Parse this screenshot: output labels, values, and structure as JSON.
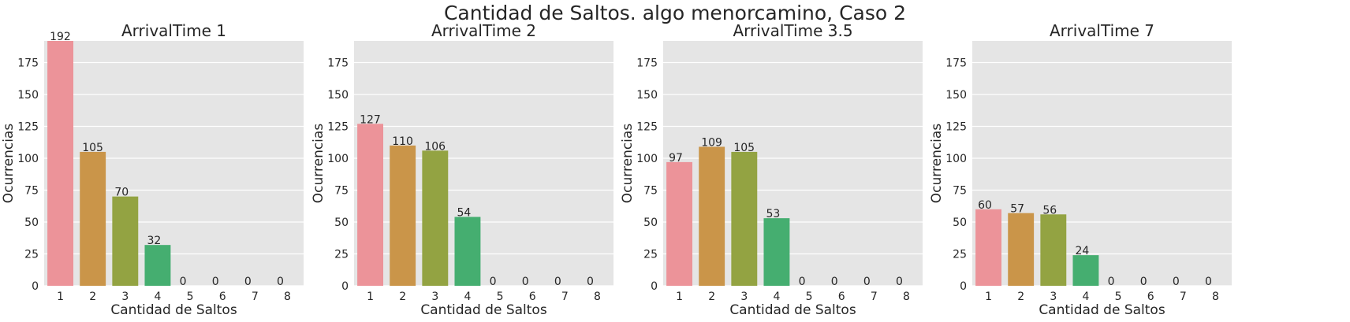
{
  "figure": {
    "suptitle": "Cantidad de Saltos. algo menorcamino, Caso 2"
  },
  "colors": {
    "panel_bg": "#e5e5e5",
    "grid": "#ffffff",
    "text": "#262626",
    "bars": [
      "#ec9399",
      "#ca9549",
      "#93a342",
      "#45ae70",
      "#47aeaa",
      "#4aa8cd",
      "#a8a0e7",
      "#e68ec6"
    ]
  },
  "chart_data": [
    {
      "type": "bar",
      "title": "ArrivalTime 1",
      "xlabel": "Cantidad de Saltos",
      "ylabel": "Ocurrencias",
      "categories": [
        "1",
        "2",
        "3",
        "4",
        "5",
        "6",
        "7",
        "8"
      ],
      "values": [
        192,
        105,
        70,
        32,
        0,
        0,
        0,
        0
      ],
      "ylim": [
        0,
        192
      ],
      "yticks": [
        0,
        25,
        50,
        75,
        100,
        125,
        150,
        175
      ],
      "grid": true
    },
    {
      "type": "bar",
      "title": "ArrivalTime 2",
      "xlabel": "Cantidad de Saltos",
      "ylabel": "Ocurrencias",
      "categories": [
        "1",
        "2",
        "3",
        "4",
        "5",
        "6",
        "7",
        "8"
      ],
      "values": [
        127,
        110,
        106,
        54,
        0,
        0,
        0,
        0
      ],
      "ylim": [
        0,
        192
      ],
      "yticks": [
        0,
        25,
        50,
        75,
        100,
        125,
        150,
        175
      ],
      "grid": true
    },
    {
      "type": "bar",
      "title": "ArrivalTime 3.5",
      "xlabel": "Cantidad de Saltos",
      "ylabel": "Ocurrencias",
      "categories": [
        "1",
        "2",
        "3",
        "4",
        "5",
        "6",
        "7",
        "8"
      ],
      "values": [
        97,
        109,
        105,
        53,
        0,
        0,
        0,
        0
      ],
      "ylim": [
        0,
        192
      ],
      "yticks": [
        0,
        25,
        50,
        75,
        100,
        125,
        150,
        175
      ],
      "grid": true
    },
    {
      "type": "bar",
      "title": "ArrivalTime 7",
      "xlabel": "Cantidad de Saltos",
      "ylabel": "Ocurrencias",
      "categories": [
        "1",
        "2",
        "3",
        "4",
        "5",
        "6",
        "7",
        "8"
      ],
      "values": [
        60,
        57,
        56,
        24,
        0,
        0,
        0,
        0
      ],
      "ylim": [
        0,
        192
      ],
      "yticks": [
        0,
        25,
        50,
        75,
        100,
        125,
        150,
        175
      ],
      "grid": true
    }
  ]
}
